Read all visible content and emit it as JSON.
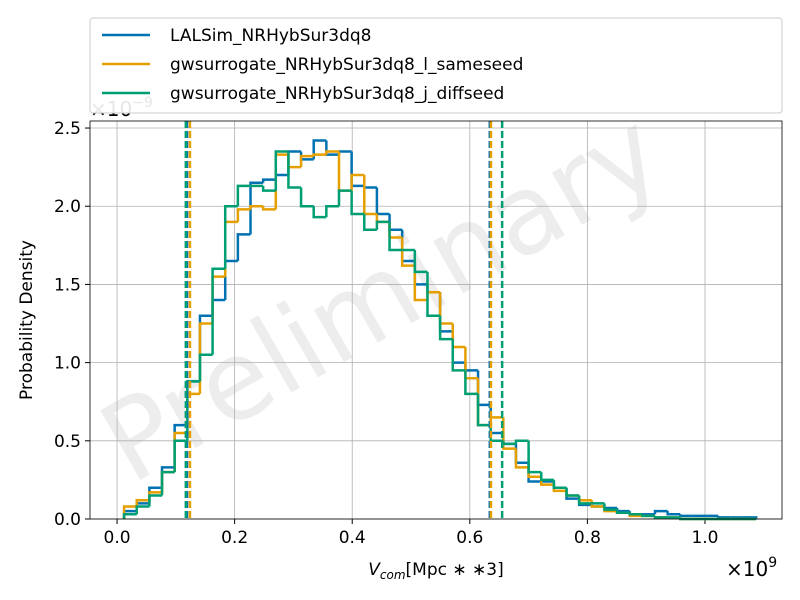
{
  "chart_data": {
    "type": "histogram",
    "ylabel": "Probability Density",
    "xlabel": {
      "main": "V",
      "sub": "com",
      "rest": "[Mpc ∗ ∗3]"
    },
    "x_offset": {
      "base": "×10",
      "exp": "9"
    },
    "y_offset": {
      "base": "×10",
      "exp": "−9"
    },
    "watermark": "Preliminary",
    "xlim": [
      -0.046,
      1.131
    ],
    "ylim": [
      0,
      2.545
    ],
    "xticks": [
      {
        "value": 0,
        "label": "0.0"
      },
      {
        "value": 0.2,
        "label": "0.2"
      },
      {
        "value": 0.4,
        "label": "0.4"
      },
      {
        "value": 0.6,
        "label": "0.6"
      },
      {
        "value": 0.8,
        "label": "0.8"
      },
      {
        "value": 1.0,
        "label": "1.0"
      }
    ],
    "yticks": [
      {
        "value": 0,
        "label": "0.0"
      },
      {
        "value": 0.5,
        "label": "0.5"
      },
      {
        "value": 1.0,
        "label": "1.0"
      },
      {
        "value": 1.5,
        "label": "1.5"
      },
      {
        "value": 2.0,
        "label": "2.0"
      },
      {
        "value": 2.5,
        "label": "2.5"
      }
    ],
    "grid": true,
    "legend": "top",
    "bins": [
      0.012,
      0.0335,
      0.055,
      0.0765,
      0.098,
      0.1195,
      0.141,
      0.1625,
      0.184,
      0.2055,
      0.227,
      0.2485,
      0.27,
      0.2915,
      0.313,
      0.3345,
      0.356,
      0.3775,
      0.399,
      0.4205,
      0.442,
      0.4635,
      0.485,
      0.5065,
      0.528,
      0.5495,
      0.571,
      0.5925,
      0.614,
      0.6355,
      0.657,
      0.6785,
      0.7,
      0.7215,
      0.743,
      0.7645,
      0.786,
      0.8075,
      0.829,
      0.8505,
      0.872,
      0.8935,
      0.915,
      0.9365,
      0.958,
      0.9795,
      1.001,
      1.0225,
      1.044,
      1.0655,
      1.087
    ],
    "series": [
      {
        "name": "LALSim_NRHybSur3dq8",
        "color": "#0072b2",
        "vlines": [
          0.119,
          0.634
        ],
        "values": [
          0.05,
          0.1,
          0.2,
          0.33,
          0.6,
          0.88,
          1.3,
          1.4,
          1.65,
          1.82,
          2.15,
          2.17,
          2.2,
          2.35,
          2.3,
          2.42,
          2.33,
          2.35,
          2.13,
          2.12,
          1.95,
          1.85,
          1.65,
          1.5,
          1.45,
          1.2,
          1.0,
          0.95,
          0.73,
          0.55,
          0.48,
          0.36,
          0.24,
          0.24,
          0.2,
          0.13,
          0.09,
          0.08,
          0.07,
          0.05,
          0.03,
          0.03,
          0.05,
          0.03,
          0.02,
          0.02,
          0.02,
          0.01,
          0.01,
          0.01
        ]
      },
      {
        "name": "gwsurrogate_NRHybSur3dq8_l_sameseed",
        "color": "#e69f00",
        "vlines": [
          0.124,
          0.636
        ],
        "values": [
          0.08,
          0.12,
          0.17,
          0.3,
          0.55,
          0.8,
          1.25,
          1.55,
          1.9,
          1.98,
          2.0,
          1.98,
          2.33,
          2.25,
          2.32,
          2.33,
          2.35,
          2.1,
          2.2,
          1.95,
          1.9,
          1.8,
          1.62,
          1.4,
          1.45,
          1.25,
          1.1,
          0.9,
          0.6,
          0.65,
          0.45,
          0.33,
          0.27,
          0.22,
          0.18,
          0.15,
          0.12,
          0.08,
          0.05,
          0.04,
          0.02,
          0.02,
          0.01,
          0.01,
          0,
          0,
          0,
          0,
          0,
          0
        ]
      },
      {
        "name": "gwsurrogate_NRHybSur3dq8_j_diffseed",
        "color": "#009e73",
        "vlines": [
          0.117,
          0.655
        ],
        "values": [
          0.03,
          0.08,
          0.15,
          0.3,
          0.5,
          0.88,
          1.05,
          1.6,
          2.0,
          2.13,
          2.13,
          2.1,
          2.35,
          2.12,
          2.0,
          1.93,
          2.0,
          2.1,
          1.95,
          1.85,
          1.9,
          1.72,
          1.72,
          1.58,
          1.3,
          1.15,
          0.95,
          0.8,
          0.6,
          0.5,
          0.48,
          0.5,
          0.3,
          0.25,
          0.2,
          0.15,
          0.1,
          0.1,
          0.06,
          0.04,
          0.03,
          0.02,
          0.01,
          0.01,
          0,
          0,
          0,
          0,
          0,
          0
        ]
      }
    ]
  }
}
